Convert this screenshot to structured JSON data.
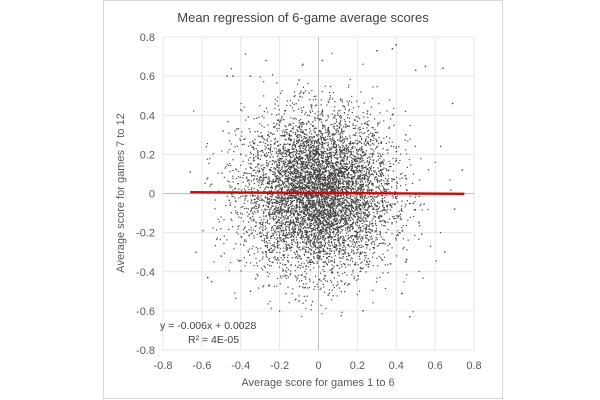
{
  "chart_data": {
    "type": "scatter",
    "title": "Mean regression of 6-game average scores",
    "xlabel": "Average score for games 1 to 6",
    "ylabel": "Average score for games 7 to 12",
    "xlim": [
      -0.8,
      0.8
    ],
    "ylim": [
      -0.8,
      0.8
    ],
    "x_ticks": [
      "-0.8",
      "-0.6",
      "-0.4",
      "-0.2",
      "0",
      "0.2",
      "0.4",
      "0.6",
      "0.8"
    ],
    "y_ticks": [
      "0.8",
      "0.6",
      "0.4",
      "0.2",
      "0",
      "-0.2",
      "-0.4",
      "-0.6",
      "-0.8"
    ],
    "grid": true,
    "legend": "none",
    "series": [
      {
        "marker_color": "#404040",
        "points": [
          [
            -0.66,
            0.11
          ],
          [
            -0.57,
            -0.43
          ],
          [
            -0.55,
            -0.45
          ],
          [
            -0.47,
            0.6
          ],
          [
            -0.44,
            0.6
          ],
          [
            -0.42,
            0.33
          ],
          [
            -0.35,
            0.6
          ],
          [
            -0.27,
            0.68
          ],
          [
            -0.1,
            0.58
          ],
          [
            0.02,
            0.68
          ],
          [
            0.3,
            0.73
          ],
          [
            0.38,
            0.74
          ],
          [
            0.4,
            0.76
          ],
          [
            0.5,
            0.63
          ],
          [
            0.55,
            0.65
          ],
          [
            0.64,
            0.64
          ],
          [
            0.69,
            0.46
          ],
          [
            0.74,
            0.12
          ],
          [
            0.7,
            -0.08
          ],
          [
            0.65,
            -0.3
          ],
          [
            0.45,
            -0.35
          ],
          [
            0.23,
            -0.6
          ],
          [
            0.47,
            -0.63
          ],
          [
            -0.35,
            -0.5
          ],
          [
            -0.5,
            -0.32
          ],
          [
            -0.1,
            -0.55
          ],
          [
            0.05,
            -0.52
          ],
          [
            0.1,
            0.4
          ],
          [
            -0.2,
            0.1
          ],
          [
            0.2,
            -0.2
          ],
          [
            -0.05,
            -0.05
          ],
          [
            0.15,
            0.15
          ],
          [
            -0.3,
            -0.15
          ],
          [
            0.35,
            0.05
          ],
          [
            -0.15,
            0.3
          ],
          [
            0.25,
            -0.35
          ],
          [
            -0.4,
            0.2
          ],
          [
            0.45,
            0.3
          ],
          [
            0.0,
            0.0
          ],
          [
            -0.25,
            -0.3
          ]
        ]
      }
    ],
    "trendline": {
      "color": "#e00000",
      "slope": -0.006,
      "intercept": 0.0028,
      "x_range": [
        -0.66,
        0.75
      ]
    },
    "annotation": {
      "equation": "y = -0.006x + 0.0028",
      "r_squared": "R² = 4E-05"
    },
    "dense_cloud": {
      "count": 7000,
      "x_mean": 0.0,
      "x_sd": 0.19,
      "y_mean": 0.0,
      "y_sd": 0.2,
      "x_range": [
        -0.66,
        0.75
      ],
      "y_range": [
        -0.66,
        0.76
      ]
    }
  }
}
